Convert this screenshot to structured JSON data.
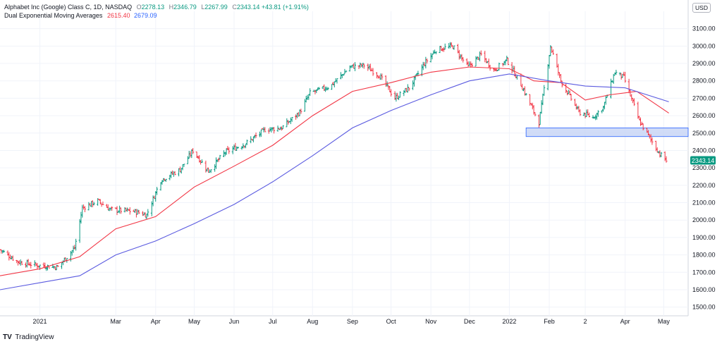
{
  "header": {
    "symbol": "Alphabet Inc (Google) Class C, 1D, NASDAQ",
    "open_label": "O",
    "open": "2278.13",
    "high_label": "H",
    "high": "2346.79",
    "low_label": "L",
    "low": "2267.99",
    "close_label": "C",
    "close": "2343.14",
    "change": "+43.81 (+1.91%)",
    "indicator": "Dual Exponential Moving Averages",
    "ema_fast": "2615.40",
    "ema_slow": "2679.09"
  },
  "currency": "USD",
  "branding": {
    "logo": "TV",
    "name": "TradingView"
  },
  "chart_data": {
    "type": "ohlc",
    "ylim": [
      1450,
      3200
    ],
    "y_ticks": [
      1500,
      1600,
      1700,
      1800,
      1900,
      2000,
      2100,
      2200,
      2300,
      2400,
      2500,
      2600,
      2700,
      2800,
      2900,
      3000,
      3100
    ],
    "x_range": [
      "2020-12-01",
      "2022-05-20"
    ],
    "x_ticks": [
      {
        "label": "2021",
        "date": "2021-01-01"
      },
      {
        "label": "Mar",
        "date": "2021-03-01"
      },
      {
        "label": "Apr",
        "date": "2021-04-01"
      },
      {
        "label": "May",
        "date": "2021-05-01"
      },
      {
        "label": "Jun",
        "date": "2021-06-01"
      },
      {
        "label": "Jul",
        "date": "2021-07-01"
      },
      {
        "label": "Aug",
        "date": "2021-08-01"
      },
      {
        "label": "Sep",
        "date": "2021-09-01"
      },
      {
        "label": "Oct",
        "date": "2021-10-01"
      },
      {
        "label": "Nov",
        "date": "2021-11-01"
      },
      {
        "label": "Dec",
        "date": "2021-12-01"
      },
      {
        "label": "2022",
        "date": "2022-01-01"
      },
      {
        "label": "Feb",
        "date": "2022-02-01"
      },
      {
        "label": "2",
        "date": "2022-03-01"
      },
      {
        "label": "Apr",
        "date": "2022-04-01"
      },
      {
        "label": "May",
        "date": "2022-05-01"
      }
    ],
    "price_path": [
      [
        "2020-12-01",
        1830
      ],
      [
        "2020-12-15",
        1760
      ],
      [
        "2020-12-30",
        1740
      ],
      [
        "2021-01-15",
        1730
      ],
      [
        "2021-01-28",
        1840
      ],
      [
        "2021-02-03",
        2070
      ],
      [
        "2021-02-15",
        2110
      ],
      [
        "2021-02-25",
        2060
      ],
      [
        "2021-03-15",
        2050
      ],
      [
        "2021-03-25",
        2030
      ],
      [
        "2021-04-05",
        2230
      ],
      [
        "2021-04-20",
        2290
      ],
      [
        "2021-04-30",
        2400
      ],
      [
        "2021-05-12",
        2280
      ],
      [
        "2021-05-25",
        2390
      ],
      [
        "2021-06-10",
        2440
      ],
      [
        "2021-06-25",
        2520
      ],
      [
        "2021-07-08",
        2530
      ],
      [
        "2021-07-22",
        2620
      ],
      [
        "2021-07-30",
        2730
      ],
      [
        "2021-08-15",
        2770
      ],
      [
        "2021-08-30",
        2880
      ],
      [
        "2021-09-10",
        2890
      ],
      [
        "2021-09-22",
        2830
      ],
      [
        "2021-10-04",
        2700
      ],
      [
        "2021-10-15",
        2760
      ],
      [
        "2021-10-27",
        2900
      ],
      [
        "2021-11-05",
        2980
      ],
      [
        "2021-11-18",
        3000
      ],
      [
        "2021-11-30",
        2880
      ],
      [
        "2021-12-10",
        2950
      ],
      [
        "2021-12-20",
        2860
      ],
      [
        "2021-12-30",
        2920
      ],
      [
        "2022-01-10",
        2780
      ],
      [
        "2022-01-24",
        2560
      ],
      [
        "2022-02-02",
        3000
      ],
      [
        "2022-02-10",
        2800
      ],
      [
        "2022-02-24",
        2620
      ],
      [
        "2022-03-07",
        2590
      ],
      [
        "2022-03-15",
        2650
      ],
      [
        "2022-03-24",
        2850
      ],
      [
        "2022-03-31",
        2820
      ],
      [
        "2022-04-12",
        2570
      ],
      [
        "2022-04-22",
        2450
      ],
      [
        "2022-04-28",
        2380
      ],
      [
        "2022-05-03",
        2343
      ]
    ],
    "support_zone": {
      "from": "2022-01-14",
      "to": "2022-05-20",
      "low": 2480,
      "high": 2530,
      "color": "#c5d3f5",
      "border": "#2962ff"
    },
    "ema_fast": {
      "value": 2615.4,
      "color": "#f23645",
      "path": [
        [
          "2020-12-01",
          1680
        ],
        [
          "2021-01-01",
          1720
        ],
        [
          "2021-02-01",
          1790
        ],
        [
          "2021-03-01",
          1950
        ],
        [
          "2021-04-01",
          2020
        ],
        [
          "2021-05-01",
          2190
        ],
        [
          "2021-06-01",
          2310
        ],
        [
          "2021-07-01",
          2430
        ],
        [
          "2021-08-01",
          2600
        ],
        [
          "2021-09-01",
          2740
        ],
        [
          "2021-10-01",
          2790
        ],
        [
          "2021-11-01",
          2850
        ],
        [
          "2021-12-01",
          2880
        ],
        [
          "2022-01-01",
          2870
        ],
        [
          "2022-01-20",
          2800
        ],
        [
          "2022-02-10",
          2790
        ],
        [
          "2022-03-01",
          2690
        ],
        [
          "2022-03-20",
          2720
        ],
        [
          "2022-04-10",
          2740
        ],
        [
          "2022-05-05",
          2615
        ]
      ]
    },
    "ema_slow": {
      "value": 2679.09,
      "color": "#5b5be0",
      "path": [
        [
          "2020-12-01",
          1600
        ],
        [
          "2021-01-01",
          1640
        ],
        [
          "2021-02-01",
          1680
        ],
        [
          "2021-03-01",
          1800
        ],
        [
          "2021-04-01",
          1880
        ],
        [
          "2021-05-01",
          1980
        ],
        [
          "2021-06-01",
          2090
        ],
        [
          "2021-07-01",
          2220
        ],
        [
          "2021-08-01",
          2370
        ],
        [
          "2021-09-01",
          2530
        ],
        [
          "2021-10-01",
          2630
        ],
        [
          "2021-11-01",
          2720
        ],
        [
          "2021-12-01",
          2800
        ],
        [
          "2022-01-01",
          2840
        ],
        [
          "2022-02-01",
          2800
        ],
        [
          "2022-03-01",
          2770
        ],
        [
          "2022-04-01",
          2760
        ],
        [
          "2022-05-05",
          2680
        ]
      ]
    },
    "last_price": {
      "value": 2343.14,
      "label": "2343.14",
      "color": "#089981"
    },
    "up_color": "#089981",
    "down_color": "#f23645"
  }
}
